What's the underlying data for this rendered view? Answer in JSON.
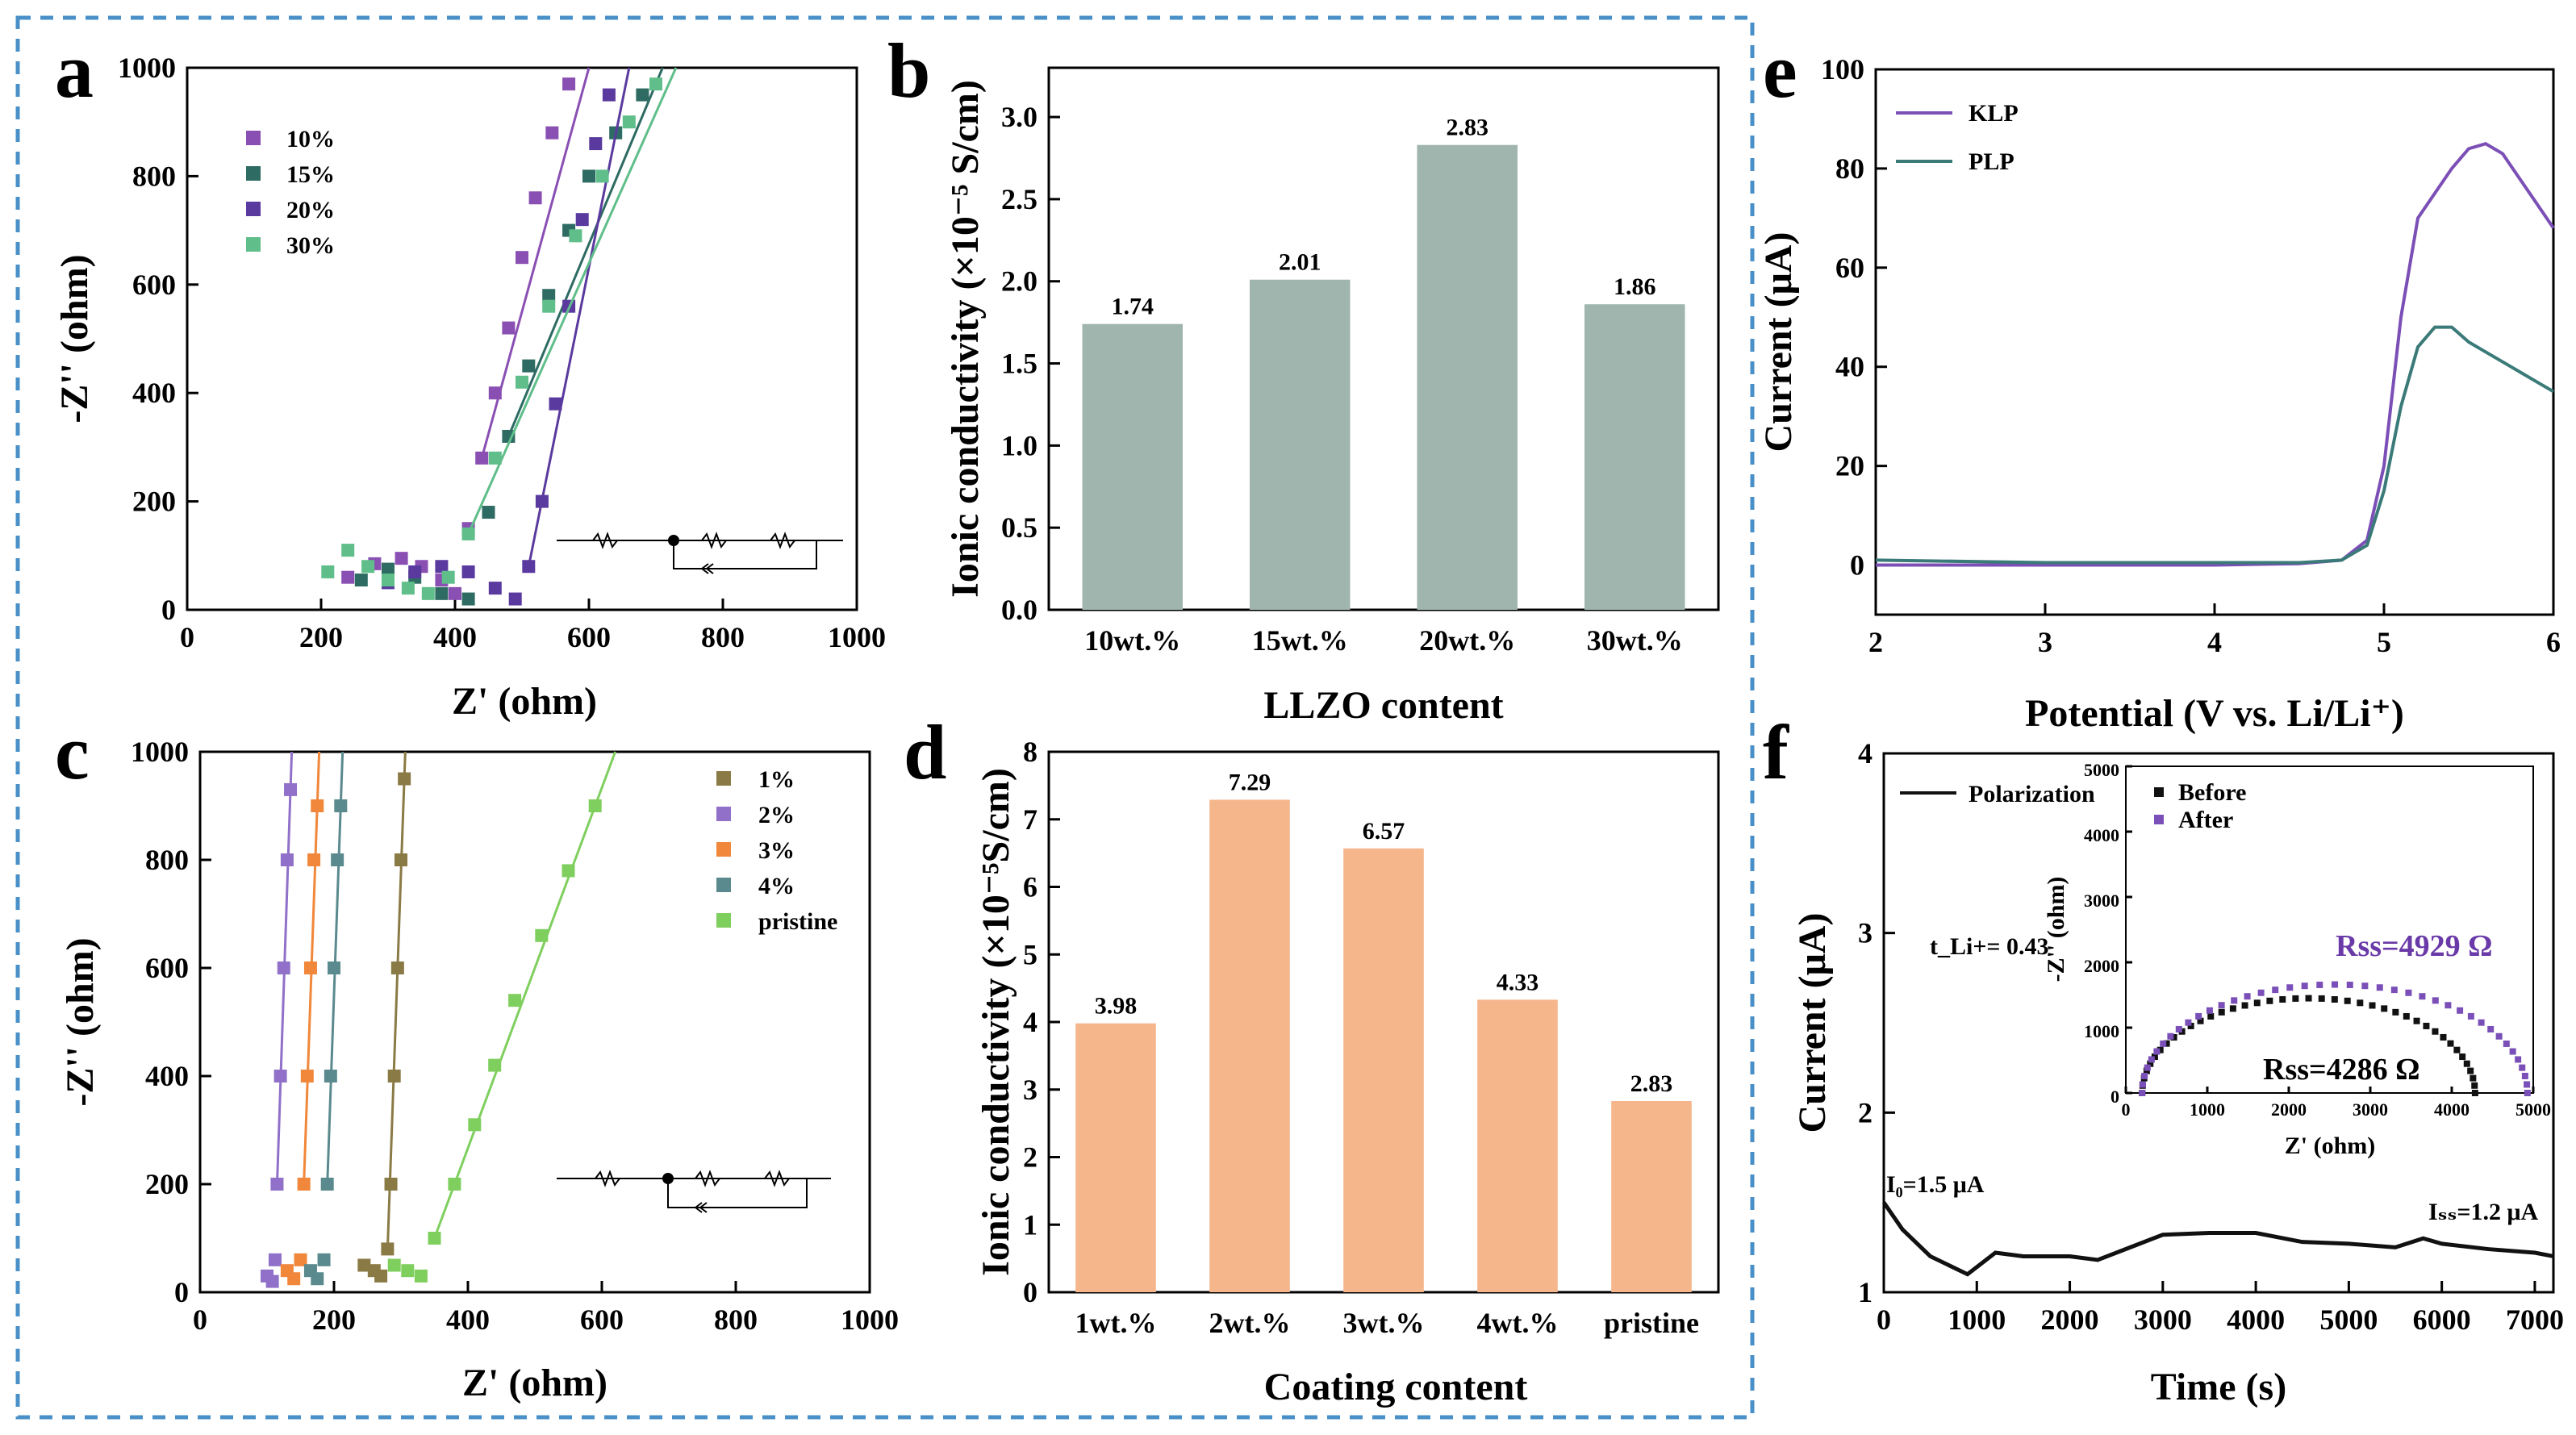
{
  "figure": {
    "dashed_border_color": "#4a90c8"
  },
  "panels": {
    "a": {
      "label": "a",
      "xlabel": "Z' (ohm)",
      "ylabel": "-Z'' (ohm)",
      "xticks": [
        "0",
        "200",
        "400",
        "600",
        "800",
        "1000"
      ],
      "yticks": [
        "0",
        "200",
        "400",
        "600",
        "800",
        "1000"
      ],
      "legend": [
        "10%",
        "15%",
        "20%",
        "30%"
      ]
    },
    "b": {
      "label": "b",
      "ylabel": "Ionic conductivity (×10⁻⁵ S/cm)",
      "xlabel": "LLZO content",
      "yticks": [
        "0.0",
        "0.5",
        "1.0",
        "1.5",
        "2.0",
        "2.5",
        "3.0"
      ],
      "value_labels": [
        "1.74",
        "2.01",
        "2.83",
        "1.86"
      ]
    },
    "c": {
      "label": "c",
      "xlabel": "Z' (ohm)",
      "ylabel": "-Z'' (ohm)",
      "xticks": [
        "0",
        "200",
        "400",
        "600",
        "800",
        "1000"
      ],
      "yticks": [
        "0",
        "200",
        "400",
        "600",
        "800",
        "1000"
      ],
      "legend": [
        "1%",
        "2%",
        "3%",
        "4%",
        "pristine"
      ]
    },
    "d": {
      "label": "d",
      "ylabel": "Ionic conductivity (×10⁻⁵S/cm)",
      "xlabel": "Coating content",
      "yticks": [
        "0",
        "1",
        "2",
        "3",
        "4",
        "5",
        "6",
        "7",
        "8"
      ],
      "value_labels": [
        "3.98",
        "7.29",
        "6.57",
        "4.33",
        "2.83"
      ]
    },
    "e": {
      "label": "e",
      "xlabel": "Potential (V vs. Li/Li⁺)",
      "ylabel": "Current (μA)",
      "xticks": [
        "2",
        "3",
        "4",
        "5",
        "6"
      ],
      "yticks": [
        "0",
        "20",
        "40",
        "60",
        "80",
        "100"
      ],
      "legend": [
        "KLP",
        "PLP"
      ]
    },
    "f": {
      "label": "f",
      "xlabel": "Time (s)",
      "ylabel": "Current (μA)",
      "xticks": [
        "0",
        "1000",
        "2000",
        "3000",
        "4000",
        "5000",
        "6000",
        "7000"
      ],
      "yticks": [
        "1",
        "2",
        "3",
        "4"
      ],
      "legend": "Polarization",
      "i0_label": "I₀=1.5 μA",
      "iss_label": "Iₛₛ=1.2 μA",
      "tli_label": "t_Li+= 0.43",
      "inset": {
        "xlabel": "Z' (ohm)",
        "ylabel": "-Z'' (ohm)",
        "xticks": [
          "0",
          "1000",
          "2000",
          "3000",
          "4000",
          "5000"
        ],
        "yticks": [
          "0",
          "1000",
          "2000",
          "3000",
          "4000",
          "5000"
        ],
        "legend": [
          "Before",
          "After"
        ],
        "rss_after": "Rss=4929 Ω",
        "rss_before": "Rss=4286 Ω"
      }
    }
  },
  "chart_data": [
    {
      "panel": "a",
      "type": "scatter",
      "xlim": [
        0,
        1000
      ],
      "ylim": [
        0,
        1000
      ],
      "series": [
        {
          "name": "10%",
          "color": "#8a4fb3",
          "points": [
            [
              240,
              60
            ],
            [
              280,
              85
            ],
            [
              320,
              95
            ],
            [
              350,
              80
            ],
            [
              380,
              55
            ],
            [
              400,
              30
            ],
            [
              420,
              150
            ],
            [
              440,
              280
            ],
            [
              460,
              400
            ],
            [
              480,
              520
            ],
            [
              500,
              650
            ],
            [
              520,
              760
            ],
            [
              545,
              880
            ],
            [
              570,
              970
            ]
          ]
        },
        {
          "name": "15%",
          "color": "#2e6b63",
          "points": [
            [
              260,
              55
            ],
            [
              300,
              75
            ],
            [
              340,
              60
            ],
            [
              380,
              30
            ],
            [
              420,
              20
            ],
            [
              450,
              180
            ],
            [
              480,
              320
            ],
            [
              510,
              450
            ],
            [
              540,
              580
            ],
            [
              570,
              700
            ],
            [
              600,
              800
            ],
            [
              640,
              880
            ],
            [
              680,
              950
            ]
          ]
        },
        {
          "name": "20%",
          "color": "#5a3a9e",
          "points": [
            [
              300,
              50
            ],
            [
              340,
              70
            ],
            [
              380,
              80
            ],
            [
              420,
              70
            ],
            [
              460,
              40
            ],
            [
              490,
              20
            ],
            [
              510,
              80
            ],
            [
              530,
              200
            ],
            [
              550,
              380
            ],
            [
              570,
              560
            ],
            [
              590,
              720
            ],
            [
              610,
              860
            ],
            [
              630,
              950
            ]
          ]
        },
        {
          "name": "30%",
          "color": "#5fbe8a",
          "points": [
            [
              210,
              70
            ],
            [
              240,
              110
            ],
            [
              270,
              80
            ],
            [
              300,
              55
            ],
            [
              330,
              40
            ],
            [
              360,
              30
            ],
            [
              390,
              60
            ],
            [
              420,
              140
            ],
            [
              460,
              280
            ],
            [
              500,
              420
            ],
            [
              540,
              560
            ],
            [
              580,
              690
            ],
            [
              620,
              800
            ],
            [
              660,
              900
            ],
            [
              700,
              970
            ]
          ]
        }
      ]
    },
    {
      "panel": "b",
      "type": "bar",
      "categories": [
        "10wt.%",
        "15wt.%",
        "20wt.%",
        "30wt.%"
      ],
      "values": [
        1.74,
        2.01,
        2.83,
        1.86
      ],
      "ylim": [
        0,
        3.3
      ],
      "color": "#9fb5ad",
      "xlabel": "LLZO content",
      "ylabel": "Ionic conductivity (×10⁻⁵ S/cm)"
    },
    {
      "panel": "c",
      "type": "scatter",
      "xlim": [
        0,
        1000
      ],
      "ylim": [
        0,
        1000
      ],
      "series": [
        {
          "name": "1%",
          "color": "#8a7a45",
          "points": [
            [
              245,
              50
            ],
            [
              260,
              40
            ],
            [
              270,
              30
            ],
            [
              280,
              80
            ],
            [
              285,
              200
            ],
            [
              290,
              400
            ],
            [
              295,
              600
            ],
            [
              300,
              800
            ],
            [
              305,
              950
            ]
          ]
        },
        {
          "name": "2%",
          "color": "#9070c8",
          "points": [
            [
              100,
              30
            ],
            [
              108,
              20
            ],
            [
              112,
              60
            ],
            [
              115,
              200
            ],
            [
              120,
              400
            ],
            [
              125,
              600
            ],
            [
              130,
              800
            ],
            [
              135,
              930
            ]
          ]
        },
        {
          "name": "3%",
          "color": "#f0873a",
          "points": [
            [
              130,
              40
            ],
            [
              140,
              25
            ],
            [
              150,
              60
            ],
            [
              155,
              200
            ],
            [
              160,
              400
            ],
            [
              165,
              600
            ],
            [
              170,
              800
            ],
            [
              175,
              900
            ]
          ]
        },
        {
          "name": "4%",
          "color": "#5a8a8e",
          "points": [
            [
              165,
              40
            ],
            [
              175,
              25
            ],
            [
              185,
              60
            ],
            [
              190,
              200
            ],
            [
              195,
              400
            ],
            [
              200,
              600
            ],
            [
              205,
              800
            ],
            [
              210,
              900
            ]
          ]
        },
        {
          "name": "pristine",
          "color": "#7fcf5f",
          "points": [
            [
              290,
              50
            ],
            [
              310,
              40
            ],
            [
              330,
              30
            ],
            [
              350,
              100
            ],
            [
              380,
              200
            ],
            [
              410,
              310
            ],
            [
              440,
              420
            ],
            [
              470,
              540
            ],
            [
              510,
              660
            ],
            [
              550,
              780
            ],
            [
              590,
              900
            ]
          ]
        }
      ]
    },
    {
      "panel": "d",
      "type": "bar",
      "categories": [
        "1wt.%",
        "2wt.%",
        "3wt.%",
        "4wt.%",
        "pristine"
      ],
      "values": [
        3.98,
        7.29,
        6.57,
        4.33,
        2.83
      ],
      "ylim": [
        0,
        8
      ],
      "color": "#f5b68c",
      "xlabel": "Coating content",
      "ylabel": "Ionic conductivity (×10⁻⁵S/cm)"
    },
    {
      "panel": "e",
      "type": "line",
      "xlim": [
        2,
        6
      ],
      "ylim": [
        -10,
        100
      ],
      "series": [
        {
          "name": "KLP",
          "color": "#7b4fb6",
          "x": [
            2,
            3,
            4,
            4.5,
            4.75,
            4.9,
            5.0,
            5.1,
            5.2,
            5.3,
            5.4,
            5.5,
            5.6,
            5.7,
            5.8,
            5.9,
            6.0
          ],
          "y": [
            0,
            0,
            0,
            0.3,
            1,
            5,
            20,
            50,
            70,
            75,
            80,
            84,
            85,
            83,
            78,
            73,
            68
          ]
        },
        {
          "name": "PLP",
          "color": "#3a7a78",
          "x": [
            2,
            3,
            4,
            4.5,
            4.75,
            4.9,
            5.0,
            5.1,
            5.2,
            5.3,
            5.4,
            5.5,
            5.6,
            5.7,
            5.8,
            5.9,
            6.0
          ],
          "y": [
            1,
            0.5,
            0.5,
            0.5,
            1,
            4,
            15,
            32,
            44,
            48,
            48,
            45,
            43,
            41,
            39,
            37,
            35
          ]
        }
      ]
    },
    {
      "panel": "f",
      "type": "line",
      "xlim": [
        0,
        7200
      ],
      "ylim": [
        1,
        4
      ],
      "series": [
        {
          "name": "Polarization",
          "color": "#111111",
          "x": [
            0,
            200,
            500,
            900,
            1200,
            1500,
            2000,
            2300,
            2700,
            3000,
            3500,
            4000,
            4500,
            5000,
            5500,
            5800,
            6000,
            6500,
            7000,
            7200
          ],
          "y": [
            1.5,
            1.35,
            1.2,
            1.1,
            1.22,
            1.2,
            1.2,
            1.18,
            1.26,
            1.32,
            1.33,
            1.33,
            1.28,
            1.27,
            1.25,
            1.3,
            1.27,
            1.24,
            1.22,
            1.2
          ]
        }
      ],
      "inset": {
        "type": "scatter",
        "xlim": [
          0,
          5000
        ],
        "ylim": [
          0,
          5000
        ],
        "series": [
          {
            "name": "Before",
            "color": "#111111",
            "points": "semicircle",
            "r_low": 200,
            "r_high": 4286,
            "peak": 1450
          },
          {
            "name": "After",
            "color": "#7a4fb8",
            "points": "semicircle",
            "r_low": 200,
            "r_high": 4929,
            "peak": 1660
          }
        ]
      }
    }
  ]
}
